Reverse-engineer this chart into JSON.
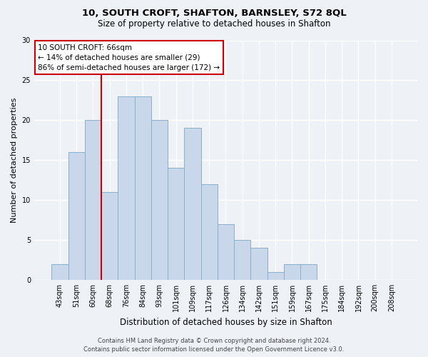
{
  "title1": "10, SOUTH CROFT, SHAFTON, BARNSLEY, S72 8QL",
  "title2": "Size of property relative to detached houses in Shafton",
  "xlabel": "Distribution of detached houses by size in Shafton",
  "ylabel": "Number of detached properties",
  "footer1": "Contains HM Land Registry data © Crown copyright and database right 2024.",
  "footer2": "Contains public sector information licensed under the Open Government Licence v3.0.",
  "annotation_line1": "10 SOUTH CROFT: 66sqm",
  "annotation_line2": "← 14% of detached houses are smaller (29)",
  "annotation_line3": "86% of semi-detached houses are larger (172) →",
  "bar_labels": [
    "43sqm",
    "51sqm",
    "60sqm",
    "68sqm",
    "76sqm",
    "84sqm",
    "93sqm",
    "101sqm",
    "109sqm",
    "117sqm",
    "126sqm",
    "134sqm",
    "142sqm",
    "151sqm",
    "159sqm",
    "167sqm",
    "175sqm",
    "184sqm",
    "192sqm",
    "200sqm",
    "208sqm"
  ],
  "bar_values": [
    2,
    16,
    20,
    11,
    23,
    23,
    20,
    14,
    19,
    12,
    7,
    5,
    4,
    1,
    2,
    2,
    0,
    0,
    0,
    0,
    0
  ],
  "bar_color": "#c8d8ea",
  "bar_edge_color": "#8aaecb",
  "vline_color": "#cc0000",
  "vline_x_index": 2.5,
  "ylim": [
    0,
    30
  ],
  "yticks": [
    0,
    5,
    10,
    15,
    20,
    25,
    30
  ],
  "bg_color": "#eef2f7",
  "grid_color": "#ffffff",
  "annotation_box_facecolor": "#ffffff",
  "annotation_box_edgecolor": "#cc0000",
  "title1_fontsize": 9.5,
  "title2_fontsize": 8.5,
  "ylabel_fontsize": 8,
  "xlabel_fontsize": 8.5,
  "footer_fontsize": 6,
  "annotation_fontsize": 7.5,
  "tick_fontsize": 7
}
